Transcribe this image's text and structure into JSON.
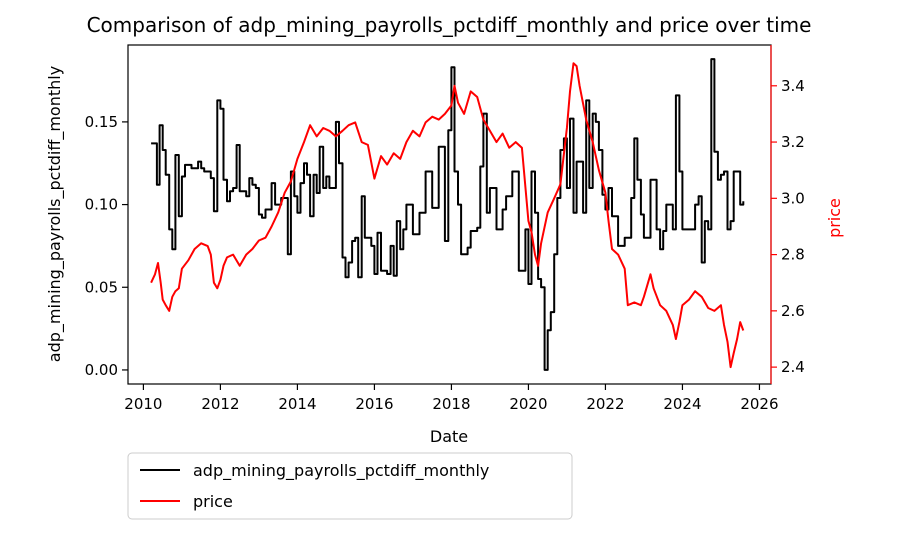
{
  "chart_data": {
    "type": "line",
    "title": "Comparison of adp_mining_payrolls_pctdiff_monthly and price over time",
    "xlabel": "Date",
    "ylabel_left": "adp_mining_payrolls_pctdiff_monthly",
    "ylabel_right": "price",
    "x_range": [
      2009.6,
      2026.3
    ],
    "x_ticks": [
      2010,
      2012,
      2014,
      2016,
      2018,
      2020,
      2022,
      2024,
      2026
    ],
    "ylim_left": [
      -0.0085,
      0.1965
    ],
    "yticks_left": [
      0.0,
      0.05,
      0.1,
      0.15
    ],
    "ylim_right": [
      2.34,
      3.545
    ],
    "yticks_right": [
      2.4,
      2.6,
      2.8,
      3.0,
      3.2,
      3.4
    ],
    "legend_placement": "below plot, left",
    "grid": false,
    "colors": {
      "left_axis": "#000000",
      "right_axis": "#ff0000"
    },
    "series": [
      {
        "name": "adp_mining_payrolls_pctdiff_monthly",
        "axis": "left",
        "color": "#000000",
        "points": [
          [
            2010.2,
            0.137
          ],
          [
            2010.3,
            0.137
          ],
          [
            2010.35,
            0.112
          ],
          [
            2010.42,
            0.148
          ],
          [
            2010.5,
            0.133
          ],
          [
            2010.58,
            0.118
          ],
          [
            2010.67,
            0.085
          ],
          [
            2010.75,
            0.073
          ],
          [
            2010.83,
            0.13
          ],
          [
            2010.92,
            0.093
          ],
          [
            2011.0,
            0.117
          ],
          [
            2011.08,
            0.124
          ],
          [
            2011.25,
            0.122
          ],
          [
            2011.42,
            0.126
          ],
          [
            2011.5,
            0.122
          ],
          [
            2011.58,
            0.12
          ],
          [
            2011.75,
            0.116
          ],
          [
            2011.83,
            0.096
          ],
          [
            2011.92,
            0.163
          ],
          [
            2012.0,
            0.158
          ],
          [
            2012.08,
            0.115
          ],
          [
            2012.17,
            0.102
          ],
          [
            2012.25,
            0.108
          ],
          [
            2012.33,
            0.11
          ],
          [
            2012.42,
            0.136
          ],
          [
            2012.5,
            0.108
          ],
          [
            2012.67,
            0.105
          ],
          [
            2012.75,
            0.116
          ],
          [
            2012.83,
            0.112
          ],
          [
            2012.92,
            0.11
          ],
          [
            2013.0,
            0.094
          ],
          [
            2013.08,
            0.092
          ],
          [
            2013.17,
            0.097
          ],
          [
            2013.33,
            0.113
          ],
          [
            2013.42,
            0.1
          ],
          [
            2013.58,
            0.104
          ],
          [
            2013.75,
            0.07
          ],
          [
            2013.83,
            0.12
          ],
          [
            2013.92,
            0.105
          ],
          [
            2014.0,
            0.095
          ],
          [
            2014.08,
            0.113
          ],
          [
            2014.17,
            0.125
          ],
          [
            2014.25,
            0.118
          ],
          [
            2014.33,
            0.093
          ],
          [
            2014.42,
            0.118
          ],
          [
            2014.5,
            0.107
          ],
          [
            2014.58,
            0.135
          ],
          [
            2014.67,
            0.11
          ],
          [
            2014.75,
            0.117
          ],
          [
            2014.83,
            0.11
          ],
          [
            2015.0,
            0.15
          ],
          [
            2015.08,
            0.125
          ],
          [
            2015.17,
            0.068
          ],
          [
            2015.25,
            0.056
          ],
          [
            2015.33,
            0.065
          ],
          [
            2015.42,
            0.078
          ],
          [
            2015.5,
            0.08
          ],
          [
            2015.58,
            0.056
          ],
          [
            2015.67,
            0.105
          ],
          [
            2015.75,
            0.08
          ],
          [
            2015.92,
            0.075
          ],
          [
            2016.0,
            0.058
          ],
          [
            2016.08,
            0.083
          ],
          [
            2016.17,
            0.06
          ],
          [
            2016.25,
            0.06
          ],
          [
            2016.33,
            0.058
          ],
          [
            2016.42,
            0.075
          ],
          [
            2016.5,
            0.057
          ],
          [
            2016.58,
            0.09
          ],
          [
            2016.67,
            0.073
          ],
          [
            2016.75,
            0.085
          ],
          [
            2016.83,
            0.1
          ],
          [
            2016.92,
            0.1
          ],
          [
            2017.0,
            0.082
          ],
          [
            2017.17,
            0.095
          ],
          [
            2017.33,
            0.12
          ],
          [
            2017.5,
            0.098
          ],
          [
            2017.67,
            0.135
          ],
          [
            2017.83,
            0.078
          ],
          [
            2017.92,
            0.145
          ],
          [
            2018.0,
            0.183
          ],
          [
            2018.08,
            0.12
          ],
          [
            2018.17,
            0.1
          ],
          [
            2018.25,
            0.07
          ],
          [
            2018.42,
            0.074
          ],
          [
            2018.5,
            0.084
          ],
          [
            2018.67,
            0.086
          ],
          [
            2018.75,
            0.123
          ],
          [
            2018.83,
            0.155
          ],
          [
            2018.92,
            0.095
          ],
          [
            2019.0,
            0.11
          ],
          [
            2019.17,
            0.085
          ],
          [
            2019.33,
            0.097
          ],
          [
            2019.42,
            0.105
          ],
          [
            2019.58,
            0.12
          ],
          [
            2019.75,
            0.06
          ],
          [
            2019.92,
            0.085
          ],
          [
            2020.0,
            0.052
          ],
          [
            2020.08,
            0.12
          ],
          [
            2020.17,
            0.095
          ],
          [
            2020.25,
            0.055
          ],
          [
            2020.33,
            0.05
          ],
          [
            2020.42,
            0.0
          ],
          [
            2020.5,
            0.024
          ],
          [
            2020.58,
            0.035
          ],
          [
            2020.67,
            0.07
          ],
          [
            2020.75,
            0.104
          ],
          [
            2020.83,
            0.133
          ],
          [
            2020.92,
            0.14
          ],
          [
            2021.0,
            0.11
          ],
          [
            2021.08,
            0.152
          ],
          [
            2021.17,
            0.095
          ],
          [
            2021.25,
            0.126
          ],
          [
            2021.42,
            0.095
          ],
          [
            2021.5,
            0.163
          ],
          [
            2021.58,
            0.11
          ],
          [
            2021.67,
            0.155
          ],
          [
            2021.75,
            0.15
          ],
          [
            2021.83,
            0.133
          ],
          [
            2021.92,
            0.106
          ],
          [
            2022.0,
            0.097
          ],
          [
            2022.08,
            0.11
          ],
          [
            2022.17,
            0.093
          ],
          [
            2022.33,
            0.075
          ],
          [
            2022.5,
            0.08
          ],
          [
            2022.67,
            0.104
          ],
          [
            2022.75,
            0.14
          ],
          [
            2022.83,
            0.115
          ],
          [
            2022.92,
            0.094
          ],
          [
            2023.0,
            0.08
          ],
          [
            2023.17,
            0.115
          ],
          [
            2023.33,
            0.085
          ],
          [
            2023.42,
            0.073
          ],
          [
            2023.5,
            0.084
          ],
          [
            2023.58,
            0.1
          ],
          [
            2023.75,
            0.085
          ],
          [
            2023.83,
            0.166
          ],
          [
            2023.92,
            0.12
          ],
          [
            2024.0,
            0.085
          ],
          [
            2024.17,
            0.085
          ],
          [
            2024.33,
            0.1
          ],
          [
            2024.42,
            0.105
          ],
          [
            2024.5,
            0.065
          ],
          [
            2024.58,
            0.09
          ],
          [
            2024.67,
            0.085
          ],
          [
            2024.75,
            0.188
          ],
          [
            2024.83,
            0.132
          ],
          [
            2024.92,
            0.115
          ],
          [
            2025.0,
            0.118
          ],
          [
            2025.08,
            0.12
          ],
          [
            2025.17,
            0.085
          ],
          [
            2025.25,
            0.09
          ],
          [
            2025.33,
            0.12
          ],
          [
            2025.42,
            0.12
          ],
          [
            2025.5,
            0.1
          ],
          [
            2025.58,
            0.102
          ]
        ]
      },
      {
        "name": "price",
        "axis": "right",
        "color": "#ff0000",
        "points": [
          [
            2010.2,
            2.7
          ],
          [
            2010.3,
            2.73
          ],
          [
            2010.38,
            2.77
          ],
          [
            2010.45,
            2.7
          ],
          [
            2010.5,
            2.64
          ],
          [
            2010.58,
            2.62
          ],
          [
            2010.67,
            2.6
          ],
          [
            2010.75,
            2.65
          ],
          [
            2010.83,
            2.67
          ],
          [
            2010.92,
            2.68
          ],
          [
            2011.0,
            2.75
          ],
          [
            2011.17,
            2.78
          ],
          [
            2011.33,
            2.82
          ],
          [
            2011.5,
            2.84
          ],
          [
            2011.67,
            2.83
          ],
          [
            2011.75,
            2.8
          ],
          [
            2011.83,
            2.7
          ],
          [
            2011.92,
            2.68
          ],
          [
            2012.0,
            2.71
          ],
          [
            2012.08,
            2.76
          ],
          [
            2012.17,
            2.79
          ],
          [
            2012.33,
            2.8
          ],
          [
            2012.5,
            2.76
          ],
          [
            2012.67,
            2.8
          ],
          [
            2012.83,
            2.82
          ],
          [
            2013.0,
            2.85
          ],
          [
            2013.17,
            2.86
          ],
          [
            2013.33,
            2.9
          ],
          [
            2013.5,
            2.95
          ],
          [
            2013.67,
            3.02
          ],
          [
            2013.83,
            3.06
          ],
          [
            2014.0,
            3.14
          ],
          [
            2014.17,
            3.2
          ],
          [
            2014.33,
            3.26
          ],
          [
            2014.5,
            3.22
          ],
          [
            2014.67,
            3.25
          ],
          [
            2014.83,
            3.24
          ],
          [
            2015.0,
            3.22
          ],
          [
            2015.17,
            3.24
          ],
          [
            2015.33,
            3.26
          ],
          [
            2015.5,
            3.27
          ],
          [
            2015.67,
            3.2
          ],
          [
            2015.83,
            3.19
          ],
          [
            2016.0,
            3.07
          ],
          [
            2016.17,
            3.15
          ],
          [
            2016.33,
            3.12
          ],
          [
            2016.5,
            3.16
          ],
          [
            2016.67,
            3.14
          ],
          [
            2016.83,
            3.2
          ],
          [
            2017.0,
            3.24
          ],
          [
            2017.17,
            3.22
          ],
          [
            2017.33,
            3.27
          ],
          [
            2017.5,
            3.29
          ],
          [
            2017.67,
            3.28
          ],
          [
            2017.83,
            3.3
          ],
          [
            2018.0,
            3.33
          ],
          [
            2018.08,
            3.4
          ],
          [
            2018.17,
            3.34
          ],
          [
            2018.33,
            3.3
          ],
          [
            2018.5,
            3.38
          ],
          [
            2018.67,
            3.36
          ],
          [
            2018.83,
            3.28
          ],
          [
            2019.0,
            3.24
          ],
          [
            2019.17,
            3.2
          ],
          [
            2019.33,
            3.23
          ],
          [
            2019.5,
            3.18
          ],
          [
            2019.67,
            3.2
          ],
          [
            2019.83,
            3.18
          ],
          [
            2020.0,
            2.92
          ],
          [
            2020.08,
            2.88
          ],
          [
            2020.17,
            2.8
          ],
          [
            2020.25,
            2.76
          ],
          [
            2020.33,
            2.84
          ],
          [
            2020.5,
            2.95
          ],
          [
            2020.67,
            3.0
          ],
          [
            2020.83,
            3.05
          ],
          [
            2021.0,
            3.25
          ],
          [
            2021.08,
            3.38
          ],
          [
            2021.17,
            3.48
          ],
          [
            2021.25,
            3.47
          ],
          [
            2021.33,
            3.4
          ],
          [
            2021.5,
            3.28
          ],
          [
            2021.67,
            3.2
          ],
          [
            2021.83,
            3.1
          ],
          [
            2022.0,
            3.02
          ],
          [
            2022.08,
            2.92
          ],
          [
            2022.17,
            2.82
          ],
          [
            2022.33,
            2.8
          ],
          [
            2022.5,
            2.75
          ],
          [
            2022.58,
            2.62
          ],
          [
            2022.75,
            2.63
          ],
          [
            2022.92,
            2.62
          ],
          [
            2023.0,
            2.65
          ],
          [
            2023.17,
            2.73
          ],
          [
            2023.25,
            2.68
          ],
          [
            2023.42,
            2.62
          ],
          [
            2023.58,
            2.6
          ],
          [
            2023.75,
            2.55
          ],
          [
            2023.83,
            2.5
          ],
          [
            2023.92,
            2.56
          ],
          [
            2024.0,
            2.62
          ],
          [
            2024.17,
            2.64
          ],
          [
            2024.33,
            2.67
          ],
          [
            2024.5,
            2.65
          ],
          [
            2024.67,
            2.61
          ],
          [
            2024.83,
            2.6
          ],
          [
            2025.0,
            2.62
          ],
          [
            2025.08,
            2.55
          ],
          [
            2025.17,
            2.49
          ],
          [
            2025.25,
            2.4
          ],
          [
            2025.33,
            2.45
          ],
          [
            2025.42,
            2.5
          ],
          [
            2025.5,
            2.56
          ],
          [
            2025.58,
            2.53
          ]
        ]
      }
    ]
  }
}
